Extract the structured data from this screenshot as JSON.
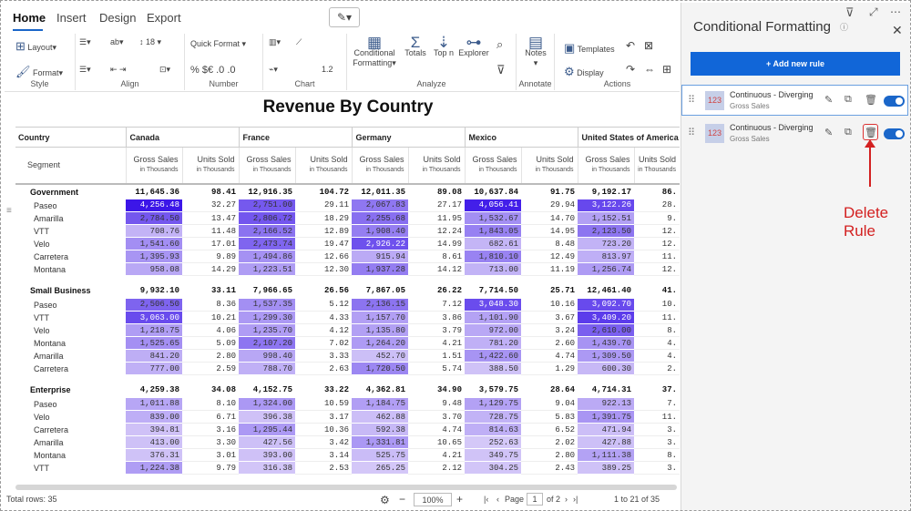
{
  "ribbon": {
    "tabs": {
      "home": "Home",
      "insert": "Insert",
      "design": "Design",
      "export": "Export"
    },
    "groups": {
      "style": "Style",
      "align": "Align",
      "number": "Number",
      "chart": "Chart",
      "analyze": "Analyze",
      "annotate": "Annotate",
      "actions": "Actions"
    },
    "layout": "Layout",
    "format": "Format",
    "font_size": "18",
    "quick_format": "Quick Format",
    "chart_val": "1.2",
    "conditional": "Conditional",
    "formatting": "Formatting",
    "totals": "Totals",
    "topn": "Top n",
    "explorer": "Explorer",
    "notes": "Notes",
    "templates": "Templates",
    "display": "Display"
  },
  "report": {
    "title": "Revenue By Country"
  },
  "table": {
    "country_hdr": "Country",
    "segment_hdr": "Segment",
    "countries": [
      "Canada",
      "France",
      "Germany",
      "Mexico",
      "United States of America"
    ],
    "measures": [
      {
        "name": "Gross Sales",
        "unit": "in Thousands"
      },
      {
        "name": "Units Sold",
        "unit": "in Thousands"
      }
    ],
    "groups": [
      {
        "name": "Government",
        "totals": [
          "11,645.36",
          "98.41",
          "12,916.35",
          "104.72",
          "12,011.35",
          "89.08",
          "10,637.84",
          "91.75",
          "9,192.17",
          "86."
        ],
        "rows": [
          {
            "label": "Paseo",
            "values": [
              "4,256.48",
              "32.27",
              "2,751.00",
              "29.11",
              "2,067.83",
              "27.17",
              "4,056.41",
              "29.94",
              "3,122.26",
              "28."
            ]
          },
          {
            "label": "Amarilla",
            "values": [
              "2,784.50",
              "13.47",
              "2,806.72",
              "18.29",
              "2,255.68",
              "11.95",
              "1,532.67",
              "14.70",
              "1,152.51",
              "9."
            ]
          },
          {
            "label": "VTT",
            "values": [
              "708.76",
              "11.48",
              "2,166.52",
              "12.89",
              "1,908.40",
              "12.24",
              "1,843.05",
              "14.95",
              "2,123.50",
              "12."
            ]
          },
          {
            "label": "Velo",
            "values": [
              "1,541.60",
              "17.01",
              "2,473.74",
              "19.47",
              "2,926.22",
              "14.99",
              "682.61",
              "8.48",
              "723.20",
              "12."
            ]
          },
          {
            "label": "Carretera",
            "values": [
              "1,395.93",
              "9.89",
              "1,494.86",
              "12.66",
              "915.94",
              "8.61",
              "1,810.10",
              "12.49",
              "813.97",
              "11."
            ]
          },
          {
            "label": "Montana",
            "values": [
              "958.08",
              "14.29",
              "1,223.51",
              "12.30",
              "1,937.28",
              "14.12",
              "713.00",
              "11.19",
              "1,256.74",
              "12."
            ]
          }
        ]
      },
      {
        "name": "Small Business",
        "totals": [
          "9,932.10",
          "33.11",
          "7,966.65",
          "26.56",
          "7,867.05",
          "26.22",
          "7,714.50",
          "25.71",
          "12,461.40",
          "41."
        ],
        "rows": [
          {
            "label": "Paseo",
            "values": [
              "2,506.50",
              "8.36",
              "1,537.35",
              "5.12",
              "2,136.15",
              "7.12",
              "3,048.30",
              "10.16",
              "3,092.70",
              "10."
            ]
          },
          {
            "label": "VTT",
            "values": [
              "3,063.00",
              "10.21",
              "1,299.30",
              "4.33",
              "1,157.70",
              "3.86",
              "1,101.90",
              "3.67",
              "3,409.20",
              "11."
            ]
          },
          {
            "label": "Velo",
            "values": [
              "1,218.75",
              "4.06",
              "1,235.70",
              "4.12",
              "1,135.80",
              "3.79",
              "972.00",
              "3.24",
              "2,610.00",
              "8."
            ]
          },
          {
            "label": "Montana",
            "values": [
              "1,525.65",
              "5.09",
              "2,107.20",
              "7.02",
              "1,264.20",
              "4.21",
              "781.20",
              "2.60",
              "1,439.70",
              "4."
            ]
          },
          {
            "label": "Amarilla",
            "values": [
              "841.20",
              "2.80",
              "998.40",
              "3.33",
              "452.70",
              "1.51",
              "1,422.60",
              "4.74",
              "1,309.50",
              "4."
            ]
          },
          {
            "label": "Carretera",
            "values": [
              "777.00",
              "2.59",
              "788.70",
              "2.63",
              "1,720.50",
              "5.74",
              "388.50",
              "1.29",
              "600.30",
              "2."
            ]
          }
        ]
      },
      {
        "name": "Enterprise",
        "totals": [
          "4,259.38",
          "34.08",
          "4,152.75",
          "33.22",
          "4,362.81",
          "34.90",
          "3,579.75",
          "28.64",
          "4,714.31",
          "37."
        ],
        "rows": [
          {
            "label": "Paseo",
            "values": [
              "1,011.88",
              "8.10",
              "1,324.00",
              "10.59",
              "1,184.75",
              "9.48",
              "1,129.75",
              "9.04",
              "922.13",
              "7."
            ]
          },
          {
            "label": "Velo",
            "values": [
              "839.00",
              "6.71",
              "396.38",
              "3.17",
              "462.88",
              "3.70",
              "728.75",
              "5.83",
              "1,391.75",
              "11."
            ]
          },
          {
            "label": "Carretera",
            "values": [
              "394.81",
              "3.16",
              "1,295.44",
              "10.36",
              "592.38",
              "4.74",
              "814.63",
              "6.52",
              "471.94",
              "3."
            ]
          },
          {
            "label": "Amarilla",
            "values": [
              "413.00",
              "3.30",
              "427.56",
              "3.42",
              "1,331.81",
              "10.65",
              "252.63",
              "2.02",
              "427.88",
              "3."
            ]
          },
          {
            "label": "Montana",
            "values": [
              "376.31",
              "3.01",
              "393.00",
              "3.14",
              "525.75",
              "4.21",
              "349.75",
              "2.80",
              "1,111.38",
              "8."
            ]
          },
          {
            "label": "VTT",
            "values": [
              "1,224.38",
              "9.79",
              "316.38",
              "2.53",
              "265.25",
              "2.12",
              "304.25",
              "2.43",
              "389.25",
              "3."
            ]
          }
        ]
      }
    ]
  },
  "footer": {
    "total_rows": "Total rows: 35",
    "zoom": "100%",
    "page_label": "Page",
    "page": "1",
    "of_pages": "of 2",
    "range": "1  to  21  of  35"
  },
  "panel": {
    "title": "Conditional Formatting",
    "add_rule": "+ Add new rule",
    "rules": [
      {
        "title": "Continuous - Diverging",
        "subtitle": "Gross Sales",
        "thumb": "123"
      },
      {
        "title": "Continuous - Diverging",
        "subtitle": "Gross Sales",
        "thumb": "123"
      }
    ]
  },
  "annotation": "Delete Rule",
  "colors": {
    "accent": "#1a66c9",
    "button": "#1166d8",
    "annotation": "#d32020",
    "heat_high": "#3a14e6",
    "heat_low": "#d4c7f7"
  }
}
